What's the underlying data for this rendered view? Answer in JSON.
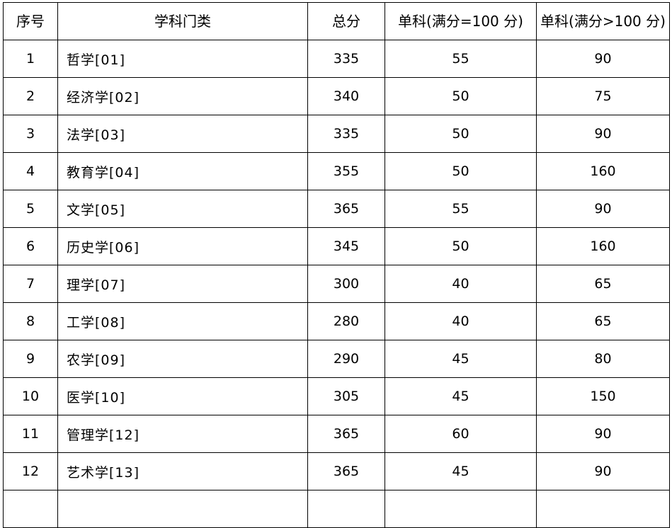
{
  "table": {
    "headers": [
      "序号",
      "学科门类",
      "总分",
      "单科(满分=100 分)",
      "单科(满分>100 分)"
    ],
    "rows": [
      [
        "1",
        "哲学[01]",
        "335",
        "55",
        "90"
      ],
      [
        "2",
        "经济学[02]",
        "340",
        "50",
        "75"
      ],
      [
        "3",
        "法学[03]",
        "335",
        "50",
        "90"
      ],
      [
        "4",
        "教育学[04]",
        "355",
        "50",
        "160"
      ],
      [
        "5",
        "文学[05]",
        "365",
        "55",
        "90"
      ],
      [
        "6",
        "历史学[06]",
        "345",
        "50",
        "160"
      ],
      [
        "7",
        "理学[07]",
        "300",
        "40",
        "65"
      ],
      [
        "8",
        "工学[08]",
        "280",
        "40",
        "65"
      ],
      [
        "9",
        "农学[09]",
        "290",
        "45",
        "80"
      ],
      [
        "10",
        "医学[10]",
        "305",
        "45",
        "150"
      ],
      [
        "11",
        "管理学[12]",
        "365",
        "60",
        "90"
      ],
      [
        "12",
        "艺术学[13]",
        "365",
        "45",
        "90"
      ]
    ]
  }
}
